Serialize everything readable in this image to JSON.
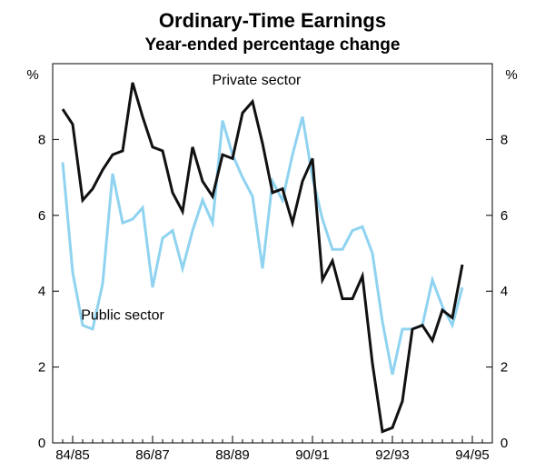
{
  "chart_data": {
    "type": "line",
    "title": "Ordinary-Time Earnings",
    "subtitle": "Year-ended percentage change",
    "ylabel_left": "%",
    "ylabel_right": "%",
    "ylim": [
      0,
      10
    ],
    "yticks": [
      0,
      2,
      4,
      6,
      8
    ],
    "xlim": [
      1984.25,
      1995.25
    ],
    "xtick_positions": [
      1984.75,
      1986.75,
      1988.75,
      1990.75,
      1992.75,
      1994.75
    ],
    "xtick_labels": [
      "84/85",
      "86/87",
      "88/89",
      "90/91",
      "92/93",
      "94/95"
    ],
    "series": [
      {
        "name": "Private sector",
        "color": "#111111",
        "x": [
          1984.5,
          1984.75,
          1985.0,
          1985.25,
          1985.5,
          1985.75,
          1986.0,
          1986.25,
          1986.5,
          1986.75,
          1987.0,
          1987.25,
          1987.5,
          1987.75,
          1988.0,
          1988.25,
          1988.5,
          1988.75,
          1989.0,
          1989.25,
          1989.5,
          1989.75,
          1990.0,
          1990.25,
          1990.5,
          1990.75,
          1991.0,
          1991.25,
          1991.5,
          1991.75,
          1992.0,
          1992.25,
          1992.5,
          1992.75,
          1993.0,
          1993.25,
          1993.5,
          1993.75,
          1994.0,
          1994.25,
          1994.5,
          1994.75
        ],
        "values": [
          8.8,
          8.4,
          6.4,
          6.7,
          7.2,
          7.6,
          7.7,
          9.5,
          8.6,
          7.8,
          7.7,
          6.6,
          6.1,
          7.8,
          6.9,
          6.5,
          7.6,
          7.5,
          8.7,
          9.0,
          7.9,
          6.6,
          6.7,
          5.8,
          6.9,
          7.5,
          4.3,
          4.8,
          3.8,
          3.8,
          4.4,
          2.1,
          0.3,
          0.4,
          1.1,
          3.0,
          3.1,
          2.7,
          3.5,
          3.3,
          4.7,
          null
        ]
      },
      {
        "name": "Public sector",
        "color": "#8fd3f0",
        "x": [
          1984.5,
          1984.75,
          1985.0,
          1985.25,
          1985.5,
          1985.75,
          1986.0,
          1986.25,
          1986.5,
          1986.75,
          1987.0,
          1987.25,
          1987.5,
          1987.75,
          1988.0,
          1988.25,
          1988.5,
          1988.75,
          1989.0,
          1989.25,
          1989.5,
          1989.75,
          1990.0,
          1990.25,
          1990.5,
          1990.75,
          1991.0,
          1991.25,
          1991.5,
          1991.75,
          1992.0,
          1992.25,
          1992.5,
          1992.75,
          1993.0,
          1993.25,
          1993.5,
          1993.75,
          1994.0,
          1994.25,
          1994.5
        ],
        "values": [
          7.4,
          4.5,
          3.1,
          3.0,
          4.2,
          7.1,
          5.8,
          5.9,
          6.2,
          4.1,
          5.4,
          5.6,
          4.6,
          5.6,
          6.4,
          5.8,
          8.5,
          7.6,
          7.0,
          6.5,
          4.6,
          6.9,
          6.4,
          7.6,
          8.6,
          7.0,
          5.9,
          5.1,
          5.1,
          5.6,
          5.7,
          5.0,
          3.2,
          1.8,
          3.0,
          3.0,
          3.1,
          4.3,
          3.6,
          3.1,
          4.1
        ]
      }
    ],
    "annotations": [
      {
        "text": "Private sector",
        "series": "Private sector",
        "x": 1989.35,
        "y": 9.45
      },
      {
        "text": "Public sector",
        "series": "Public sector",
        "x": 1986.0,
        "y": 3.25
      }
    ]
  }
}
